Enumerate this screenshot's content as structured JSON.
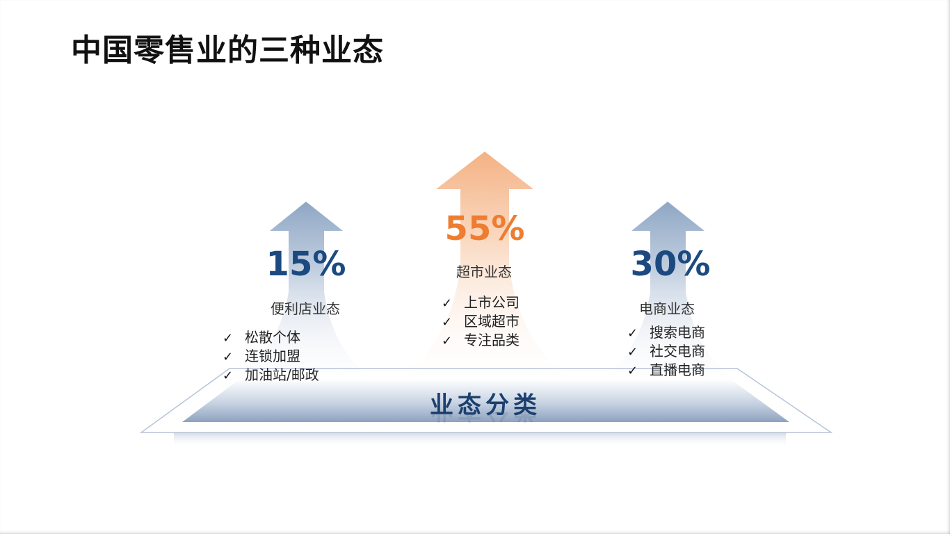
{
  "title": "中国零售业的三种业态",
  "base_label": "业态分类",
  "colors": {
    "blue_accent": "#1c4a80",
    "orange_accent": "#ee7d31",
    "arrow_blue": "#8ea6c4",
    "arrow_orange": "#f4b183"
  },
  "formats": [
    {
      "percent": "15%",
      "name": "便利店业态",
      "items": [
        "松散个体",
        "连锁加盟",
        "加油站/邮政"
      ]
    },
    {
      "percent": "55%",
      "name": "超市业态",
      "items": [
        "上市公司",
        "区域超市",
        "专注品类"
      ]
    },
    {
      "percent": "30%",
      "name": "电商业态",
      "items": [
        "搜索电商",
        "社交电商",
        "直播电商"
      ]
    }
  ],
  "check_mark": "✓"
}
